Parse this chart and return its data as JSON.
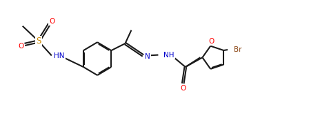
{
  "bg_color": "#ffffff",
  "line_color": "#1a1a1a",
  "atom_colors": {
    "O": "#ff0000",
    "N": "#0000cc",
    "S": "#cc8800",
    "Br": "#8b4513",
    "C": "#1a1a1a"
  },
  "font_size": 7.5,
  "lw": 1.5,
  "xlim": [
    0,
    10
  ],
  "ylim": [
    0,
    4.0
  ]
}
